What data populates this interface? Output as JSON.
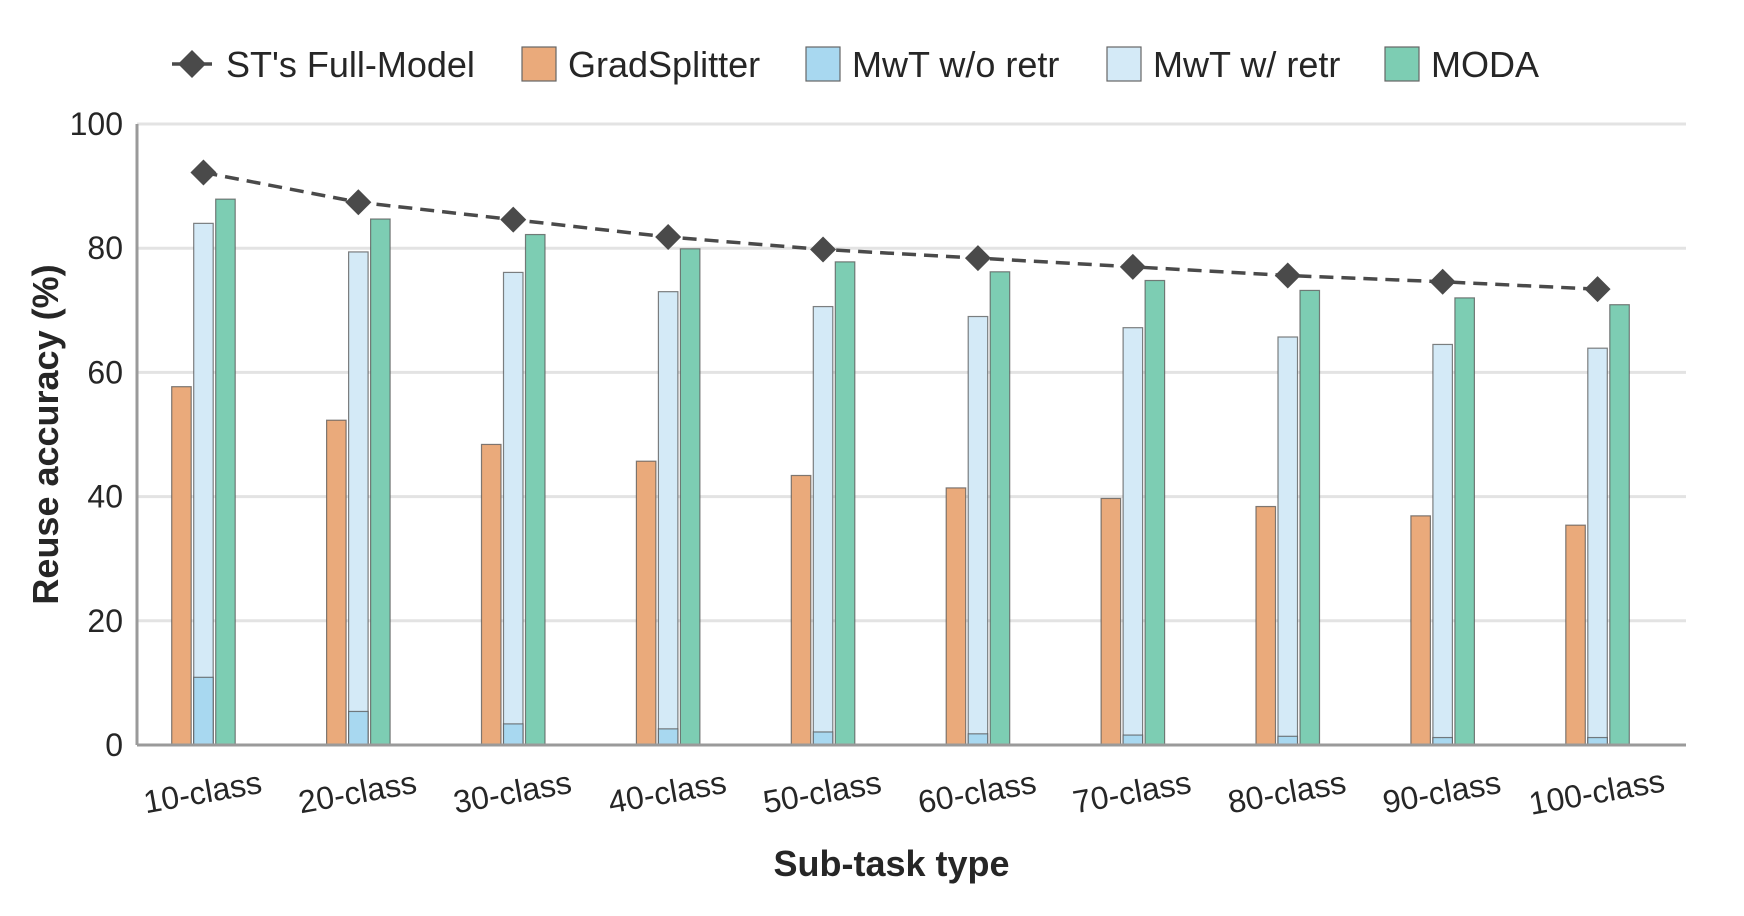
{
  "chart_data": {
    "type": "bar",
    "title": "",
    "xlabel": "Sub-task type",
    "ylabel": "Reuse accuracy (%)",
    "ylim": [
      0,
      100
    ],
    "yticks": [
      "0",
      "20",
      "40",
      "60",
      "80",
      "100"
    ],
    "grid": "horizontal",
    "legend_position": "top",
    "categories": [
      "10-class",
      "20-class",
      "30-class",
      "40-class",
      "50-class",
      "60-class",
      "70-class",
      "80-class",
      "90-class",
      "100-class"
    ],
    "line_series": {
      "name": "ST's Full-Model",
      "marker": "diamond",
      "style": "dashed",
      "color": "#4a4a4a",
      "values": [
        92.2,
        87.4,
        84.6,
        81.8,
        79.8,
        78.4,
        77.0,
        75.6,
        74.6,
        73.4
      ]
    },
    "series": [
      {
        "name": "GradSplitter",
        "color": "#eaaa7b",
        "values": [
          57.7,
          52.3,
          48.4,
          45.7,
          43.4,
          41.4,
          39.7,
          38.4,
          36.9,
          35.4
        ]
      },
      {
        "name": "MwT w/o retr",
        "color": "#a8d8f0",
        "values": [
          10.9,
          5.4,
          3.4,
          2.6,
          2.1,
          1.8,
          1.6,
          1.4,
          1.2,
          1.2
        ]
      },
      {
        "name": "MwT w/ retr",
        "color": "#d4eaf7",
        "values": [
          84.0,
          79.4,
          76.1,
          73.0,
          70.6,
          69.0,
          67.2,
          65.7,
          64.5,
          63.9
        ]
      },
      {
        "name": "MODA",
        "color": "#7dcdb3",
        "values": [
          87.9,
          84.7,
          82.2,
          79.9,
          77.8,
          76.2,
          74.8,
          73.2,
          72.0,
          70.9
        ]
      }
    ]
  }
}
